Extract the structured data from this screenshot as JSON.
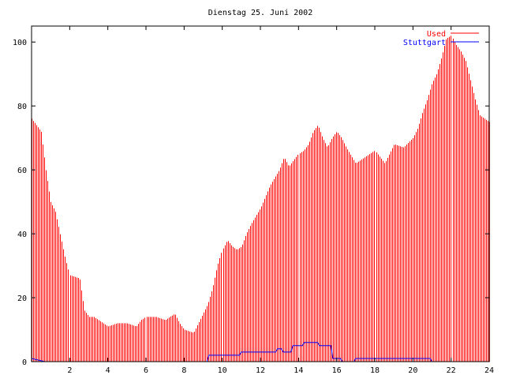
{
  "chart_data": {
    "type": "bar",
    "title": "Dienstag 25. Juni 2002",
    "xlabel": "",
    "ylabel": "",
    "xlim": [
      0,
      24
    ],
    "ylim": [
      0,
      105
    ],
    "xticks": [
      2,
      4,
      6,
      8,
      10,
      12,
      14,
      16,
      18,
      20,
      22,
      24
    ],
    "yticks": [
      0,
      20,
      40,
      60,
      80,
      100
    ],
    "grid": false,
    "legend_position": "top-right",
    "series": [
      {
        "name": "Used",
        "style": "impulses",
        "color": "#ff0000",
        "points": [
          [
            0.0,
            76
          ],
          [
            0.5,
            72
          ],
          [
            0.75,
            60
          ],
          [
            1.0,
            50
          ],
          [
            1.25,
            47
          ],
          [
            1.5,
            40
          ],
          [
            1.75,
            33
          ],
          [
            2.0,
            27
          ],
          [
            2.5,
            26
          ],
          [
            2.75,
            16
          ],
          [
            3.0,
            14
          ],
          [
            3.25,
            14
          ],
          [
            3.5,
            13
          ],
          [
            4.0,
            11
          ],
          [
            4.5,
            12
          ],
          [
            5.0,
            12
          ],
          [
            5.5,
            11
          ],
          [
            5.75,
            13
          ],
          [
            6.0,
            14
          ],
          [
            6.5,
            14
          ],
          [
            7.0,
            13
          ],
          [
            7.5,
            15
          ],
          [
            7.75,
            12
          ],
          [
            8.0,
            10
          ],
          [
            8.5,
            9
          ],
          [
            8.75,
            12
          ],
          [
            9.0,
            15
          ],
          [
            9.25,
            18
          ],
          [
            9.5,
            23
          ],
          [
            9.75,
            30
          ],
          [
            10.0,
            35
          ],
          [
            10.25,
            38
          ],
          [
            10.5,
            36
          ],
          [
            10.75,
            35
          ],
          [
            11.0,
            36
          ],
          [
            11.25,
            40
          ],
          [
            11.5,
            43
          ],
          [
            12.0,
            48
          ],
          [
            12.5,
            55
          ],
          [
            13.0,
            60
          ],
          [
            13.25,
            64
          ],
          [
            13.5,
            61
          ],
          [
            14.0,
            65
          ],
          [
            14.25,
            66
          ],
          [
            14.5,
            68
          ],
          [
            14.75,
            72
          ],
          [
            15.0,
            74
          ],
          [
            15.25,
            70
          ],
          [
            15.5,
            67
          ],
          [
            15.75,
            70
          ],
          [
            16.0,
            72
          ],
          [
            16.25,
            70
          ],
          [
            16.5,
            67
          ],
          [
            17.0,
            62
          ],
          [
            17.5,
            64
          ],
          [
            18.0,
            66
          ],
          [
            18.5,
            62
          ],
          [
            19.0,
            68
          ],
          [
            19.5,
            67
          ],
          [
            20.0,
            70
          ],
          [
            20.25,
            73
          ],
          [
            20.5,
            78
          ],
          [
            20.75,
            82
          ],
          [
            21.0,
            87
          ],
          [
            21.25,
            90
          ],
          [
            21.5,
            95
          ],
          [
            21.75,
            101
          ],
          [
            22.0,
            102
          ],
          [
            22.25,
            99
          ],
          [
            22.5,
            97
          ],
          [
            22.75,
            94
          ],
          [
            23.0,
            88
          ],
          [
            23.25,
            82
          ],
          [
            23.5,
            77
          ],
          [
            24.0,
            75
          ]
        ]
      },
      {
        "name": "Stuttgart",
        "style": "steps",
        "color": "#0000ff",
        "points": [
          [
            0.0,
            1
          ],
          [
            0.7,
            0
          ],
          [
            9.2,
            0
          ],
          [
            9.3,
            2
          ],
          [
            10.9,
            2
          ],
          [
            11.0,
            3
          ],
          [
            12.8,
            3
          ],
          [
            12.9,
            4
          ],
          [
            13.1,
            4
          ],
          [
            13.2,
            3
          ],
          [
            13.6,
            3
          ],
          [
            13.7,
            5
          ],
          [
            14.2,
            5
          ],
          [
            14.3,
            6
          ],
          [
            15.0,
            6
          ],
          [
            15.1,
            5
          ],
          [
            15.7,
            5
          ],
          [
            15.8,
            1
          ],
          [
            16.2,
            1
          ],
          [
            16.3,
            0
          ],
          [
            16.9,
            0
          ],
          [
            17.0,
            1
          ],
          [
            20.9,
            1
          ],
          [
            21.0,
            0
          ],
          [
            24.0,
            0
          ]
        ]
      }
    ]
  }
}
